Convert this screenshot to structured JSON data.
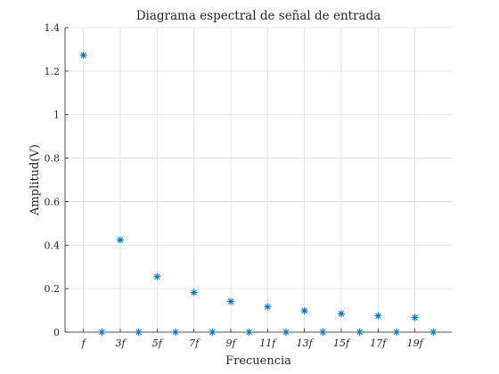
{
  "chart_data": {
    "type": "scatter",
    "title": "Diagrama espectral de señal de entrada",
    "xlabel": "Frecuencia",
    "ylabel": "Amplitud(V)",
    "xlim": [
      0,
      21
    ],
    "ylim": [
      0,
      1.4
    ],
    "grid": true,
    "marker": "asterisk",
    "marker_color": "#0072bd",
    "x_ticks": [
      {
        "x": 1,
        "label": "f"
      },
      {
        "x": 3,
        "label": "3f"
      },
      {
        "x": 5,
        "label": "5f"
      },
      {
        "x": 7,
        "label": "7f"
      },
      {
        "x": 9,
        "label": "9f"
      },
      {
        "x": 11,
        "label": "11f"
      },
      {
        "x": 13,
        "label": "13f"
      },
      {
        "x": 15,
        "label": "15f"
      },
      {
        "x": 17,
        "label": "17f"
      },
      {
        "x": 19,
        "label": "19f"
      }
    ],
    "y_ticks": [
      {
        "y": 0,
        "label": "0"
      },
      {
        "y": 0.2,
        "label": "0.2"
      },
      {
        "y": 0.4,
        "label": "0.4"
      },
      {
        "y": 0.6,
        "label": "0.6"
      },
      {
        "y": 0.8,
        "label": "0.8"
      },
      {
        "y": 1,
        "label": "1"
      },
      {
        "y": 1.2,
        "label": "1.2"
      },
      {
        "y": 1.4,
        "label": "1.4"
      }
    ],
    "x": [
      1,
      2,
      3,
      4,
      5,
      6,
      7,
      8,
      9,
      10,
      11,
      12,
      13,
      14,
      15,
      16,
      17,
      18,
      19,
      20
    ],
    "y": [
      1.273,
      0,
      0.424,
      0,
      0.255,
      0,
      0.182,
      0,
      0.141,
      0,
      0.116,
      0,
      0.098,
      0,
      0.085,
      0,
      0.075,
      0,
      0.067,
      0
    ]
  }
}
